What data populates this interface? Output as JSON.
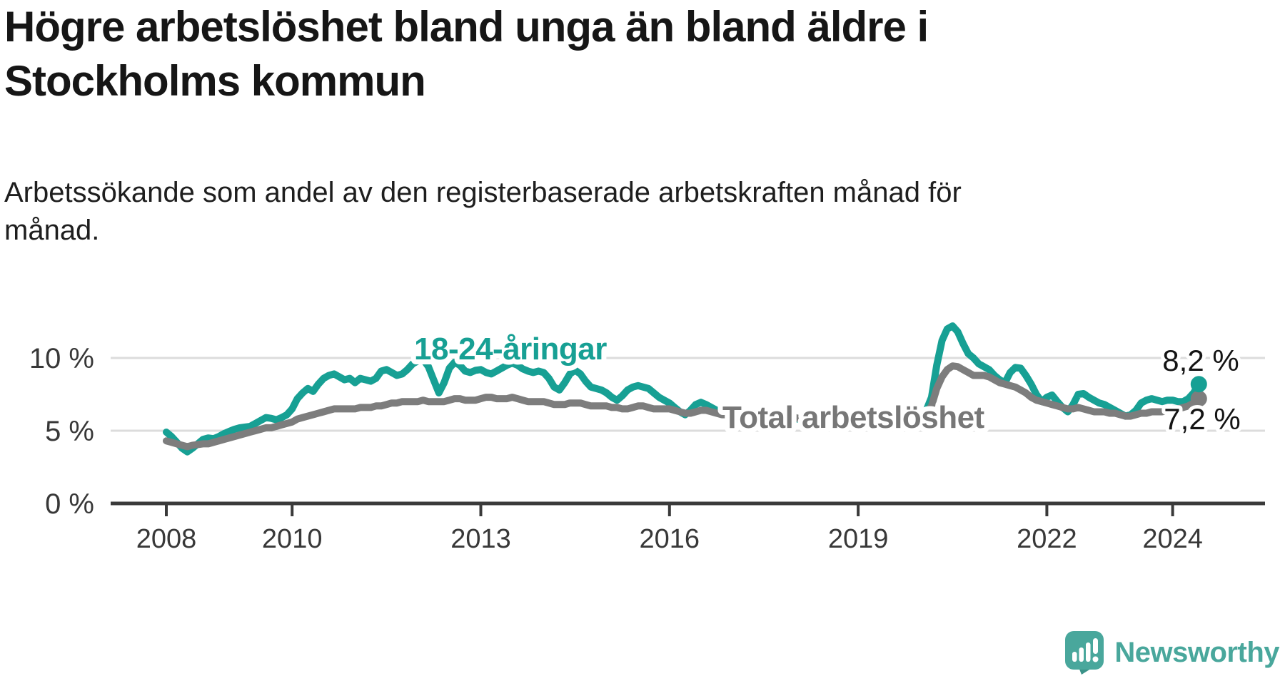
{
  "title": "Högre arbetslöshet bland unga än bland äldre i\nStockholms kommun",
  "subtitle": "Arbetssökande som andel av den registerbaserade arbetskraften månad för\nmånad.",
  "footer": {
    "brand": "Newsworthy",
    "logo_icon": "speech-bubble-bar-chart",
    "brand_color": "#49a79c"
  },
  "chart_data": {
    "type": "line",
    "unit": "%",
    "title": "Högre arbetslöshet bland unga än bland äldre i Stockholms kommun",
    "xlabel": "",
    "ylabel": "",
    "x_start": "2008-01",
    "x_end": "2024-06",
    "x_step_months": 1,
    "ylim": [
      0,
      12.5
    ],
    "grid": "horizontal",
    "yticks": [
      {
        "v": 0,
        "label": "0 %"
      },
      {
        "v": 5,
        "label": "5 %"
      },
      {
        "v": 10,
        "label": "10 %"
      }
    ],
    "xticks": [
      {
        "year": 2008,
        "label": "2008"
      },
      {
        "year": 2010,
        "label": "2010"
      },
      {
        "year": 2013,
        "label": "2013"
      },
      {
        "year": 2016,
        "label": "2016"
      },
      {
        "year": 2019,
        "label": "2019"
      },
      {
        "year": 2022,
        "label": "2022"
      },
      {
        "year": 2024,
        "label": "2024"
      }
    ],
    "series": [
      {
        "name": "18-24-åringar",
        "color": "#17a094",
        "end_label": "8,2 %",
        "end_value": 8.2,
        "values": [
          4.9,
          4.6,
          4.2,
          3.8,
          3.55,
          3.8,
          4.1,
          4.4,
          4.5,
          4.45,
          4.6,
          4.8,
          4.95,
          5.1,
          5.2,
          5.25,
          5.3,
          5.5,
          5.7,
          5.9,
          5.85,
          5.75,
          5.9,
          6.1,
          6.5,
          7.2,
          7.6,
          7.9,
          7.7,
          8.2,
          8.6,
          8.8,
          8.9,
          8.7,
          8.5,
          8.6,
          8.3,
          8.6,
          8.5,
          8.4,
          8.6,
          9.1,
          9.2,
          9.0,
          8.8,
          8.9,
          9.2,
          9.6,
          9.8,
          9.9,
          9.4,
          8.5,
          7.6,
          8.3,
          9.3,
          9.7,
          9.5,
          9.1,
          9.0,
          9.15,
          9.2,
          9.0,
          8.9,
          9.1,
          9.3,
          9.5,
          9.65,
          9.5,
          9.25,
          9.1,
          9.0,
          9.1,
          9.0,
          8.6,
          8.0,
          7.8,
          8.3,
          8.9,
          9.15,
          8.9,
          8.4,
          8.0,
          7.9,
          7.8,
          7.6,
          7.3,
          7.1,
          7.4,
          7.8,
          8.0,
          8.1,
          8.0,
          7.9,
          7.6,
          7.3,
          7.1,
          6.9,
          6.6,
          6.3,
          6.1,
          6.4,
          6.8,
          6.95,
          6.8,
          6.6,
          6.4,
          6.3,
          6.4,
          6.2,
          6.0,
          5.9,
          5.8,
          6.0,
          6.3,
          6.4,
          6.3,
          6.1,
          5.9,
          5.8,
          5.9,
          5.9,
          5.7,
          5.6,
          5.5,
          5.7,
          6.0,
          6.1,
          6.0,
          5.8,
          5.6,
          5.5,
          5.6,
          5.7,
          5.6,
          5.5,
          5.5,
          5.7,
          6.0,
          6.2,
          6.1,
          6.0,
          5.9,
          5.9,
          6.0,
          6.2,
          6.4,
          7.3,
          9.5,
          11.2,
          12.0,
          12.2,
          11.8,
          11.0,
          10.3,
          10.0,
          9.6,
          9.4,
          9.2,
          8.8,
          8.5,
          8.3,
          9.0,
          9.35,
          9.3,
          8.8,
          8.2,
          7.5,
          7.0,
          7.3,
          7.45,
          7.0,
          6.6,
          6.3,
          6.8,
          7.5,
          7.55,
          7.3,
          7.1,
          6.9,
          6.8,
          6.6,
          6.4,
          6.2,
          6.0,
          6.1,
          6.4,
          6.9,
          7.1,
          7.2,
          7.1,
          7.0,
          7.1,
          7.1,
          7.0,
          7.0,
          7.2,
          7.6,
          8.2
        ]
      },
      {
        "name": "Total arbetslöshet",
        "color": "#7d7d7d",
        "end_label": "7,2 %",
        "end_value": 7.2,
        "values": [
          4.3,
          4.2,
          4.1,
          4.0,
          3.9,
          4.0,
          4.05,
          4.1,
          4.1,
          4.2,
          4.3,
          4.4,
          4.5,
          4.6,
          4.7,
          4.8,
          4.9,
          5.0,
          5.1,
          5.2,
          5.2,
          5.3,
          5.4,
          5.5,
          5.6,
          5.8,
          5.9,
          6.0,
          6.1,
          6.2,
          6.3,
          6.4,
          6.5,
          6.5,
          6.5,
          6.5,
          6.5,
          6.6,
          6.6,
          6.6,
          6.7,
          6.7,
          6.8,
          6.9,
          6.9,
          7.0,
          7.0,
          7.0,
          7.0,
          7.1,
          7.0,
          7.0,
          7.0,
          7.0,
          7.1,
          7.2,
          7.2,
          7.1,
          7.1,
          7.1,
          7.2,
          7.3,
          7.3,
          7.2,
          7.2,
          7.2,
          7.3,
          7.2,
          7.1,
          7.0,
          7.0,
          7.0,
          7.0,
          6.9,
          6.8,
          6.8,
          6.8,
          6.9,
          6.9,
          6.9,
          6.8,
          6.7,
          6.7,
          6.7,
          6.7,
          6.6,
          6.6,
          6.5,
          6.5,
          6.6,
          6.7,
          6.7,
          6.6,
          6.5,
          6.5,
          6.5,
          6.5,
          6.4,
          6.3,
          6.2,
          6.2,
          6.3,
          6.4,
          6.4,
          6.3,
          6.2,
          6.1,
          6.1,
          6.1,
          6.0,
          6.0,
          5.9,
          5.9,
          6.0,
          6.1,
          6.1,
          6.0,
          5.9,
          5.9,
          5.9,
          5.9,
          5.8,
          5.7,
          5.6,
          5.6,
          5.7,
          5.8,
          5.8,
          5.7,
          5.6,
          5.6,
          5.6,
          5.7,
          5.7,
          5.6,
          5.6,
          5.7,
          5.8,
          5.9,
          5.9,
          5.9,
          5.9,
          6.0,
          6.0,
          6.1,
          6.2,
          6.7,
          7.9,
          8.7,
          9.2,
          9.45,
          9.4,
          9.2,
          9.0,
          8.8,
          8.8,
          8.8,
          8.7,
          8.5,
          8.3,
          8.2,
          8.1,
          8.0,
          7.8,
          7.6,
          7.3,
          7.1,
          7.0,
          6.9,
          6.8,
          6.7,
          6.6,
          6.5,
          6.5,
          6.6,
          6.5,
          6.4,
          6.3,
          6.3,
          6.3,
          6.2,
          6.2,
          6.1,
          6.0,
          6.0,
          6.1,
          6.2,
          6.2,
          6.3,
          6.3,
          6.3,
          6.4,
          6.5,
          6.5,
          6.6,
          6.7,
          6.9,
          7.2
        ]
      }
    ]
  }
}
